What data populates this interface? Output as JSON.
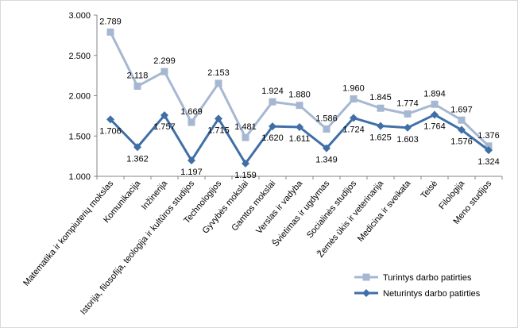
{
  "chart_data": {
    "type": "line",
    "categories": [
      "Matematika ir kompiuterių mokslas",
      "Komunikacija",
      "Inžinerija",
      "Istorija, filosofija, teologija ir kultūros studijos",
      "Technologijos",
      "Gyvybės mokslai",
      "Gamtos mokslai",
      "Verslas ir vadyba",
      "Švietimas ir ugdymas",
      "Socialinės studijos",
      "Žemės ūkis ir veterinarija",
      "Medicina ir sveikata",
      "Teisė",
      "Filologija",
      "Meno studijos"
    ],
    "series": [
      {
        "name": "Turintys darbo patirties",
        "color": "#a6b8d1",
        "marker": "square",
        "values": [
          2789,
          2118,
          2299,
          1669,
          2153,
          1481,
          1924,
          1880,
          1586,
          1960,
          1845,
          1774,
          1894,
          1697,
          1376
        ],
        "labels": [
          "2.789",
          "2.118",
          "2.299",
          "1.669",
          "2.153",
          "1.481",
          "1.924",
          "1.880",
          "1.586",
          "1.960",
          "1.845",
          "1.774",
          "1.894",
          "1.697",
          "1.376"
        ]
      },
      {
        "name": "Neturintys darbo patirties",
        "color": "#3f6fa6",
        "marker": "diamond",
        "values": [
          1706,
          1362,
          1757,
          1197,
          1715,
          1159,
          1620,
          1611,
          1349,
          1724,
          1625,
          1603,
          1764,
          1576,
          1324
        ],
        "labels": [
          "1.706",
          "1.362",
          "1.757",
          "1.197",
          "1.715",
          "1.159",
          "1.620",
          "1.611",
          "1.349",
          "1.724",
          "1.625",
          "1.603",
          "1.764",
          "1.576",
          "1.324"
        ]
      }
    ],
    "ylim": [
      1000,
      3000
    ],
    "yticks": [
      1000,
      1500,
      2000,
      2500,
      3000
    ],
    "ytick_labels": [
      "1.000",
      "1.500",
      "2.000",
      "2.500",
      "3.000"
    ],
    "grid": false,
    "legend": "bottom-right",
    "title": "",
    "xlabel": "",
    "ylabel": ""
  }
}
